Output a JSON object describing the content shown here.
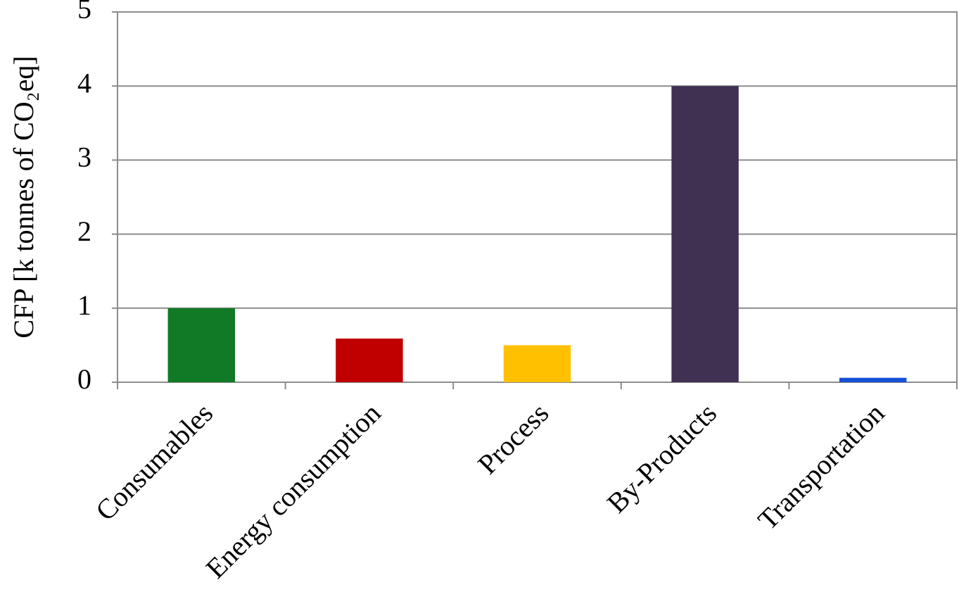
{
  "chart_data": {
    "type": "bar",
    "y_label": "CFP [k tonnes of CO₂eq]",
    "categories": [
      "Consumables",
      "Energy consumption",
      "Process",
      "By-Products",
      "Transportation"
    ],
    "values": [
      1.0,
      0.59,
      0.5,
      4.0,
      0.06
    ],
    "colors": [
      "#107a26",
      "#c00000",
      "#ffc000",
      "#403152",
      "#1550d6"
    ],
    "ylim": [
      0,
      5
    ],
    "yticks": [
      0,
      1,
      2,
      3,
      4,
      5
    ],
    "grid": true
  }
}
